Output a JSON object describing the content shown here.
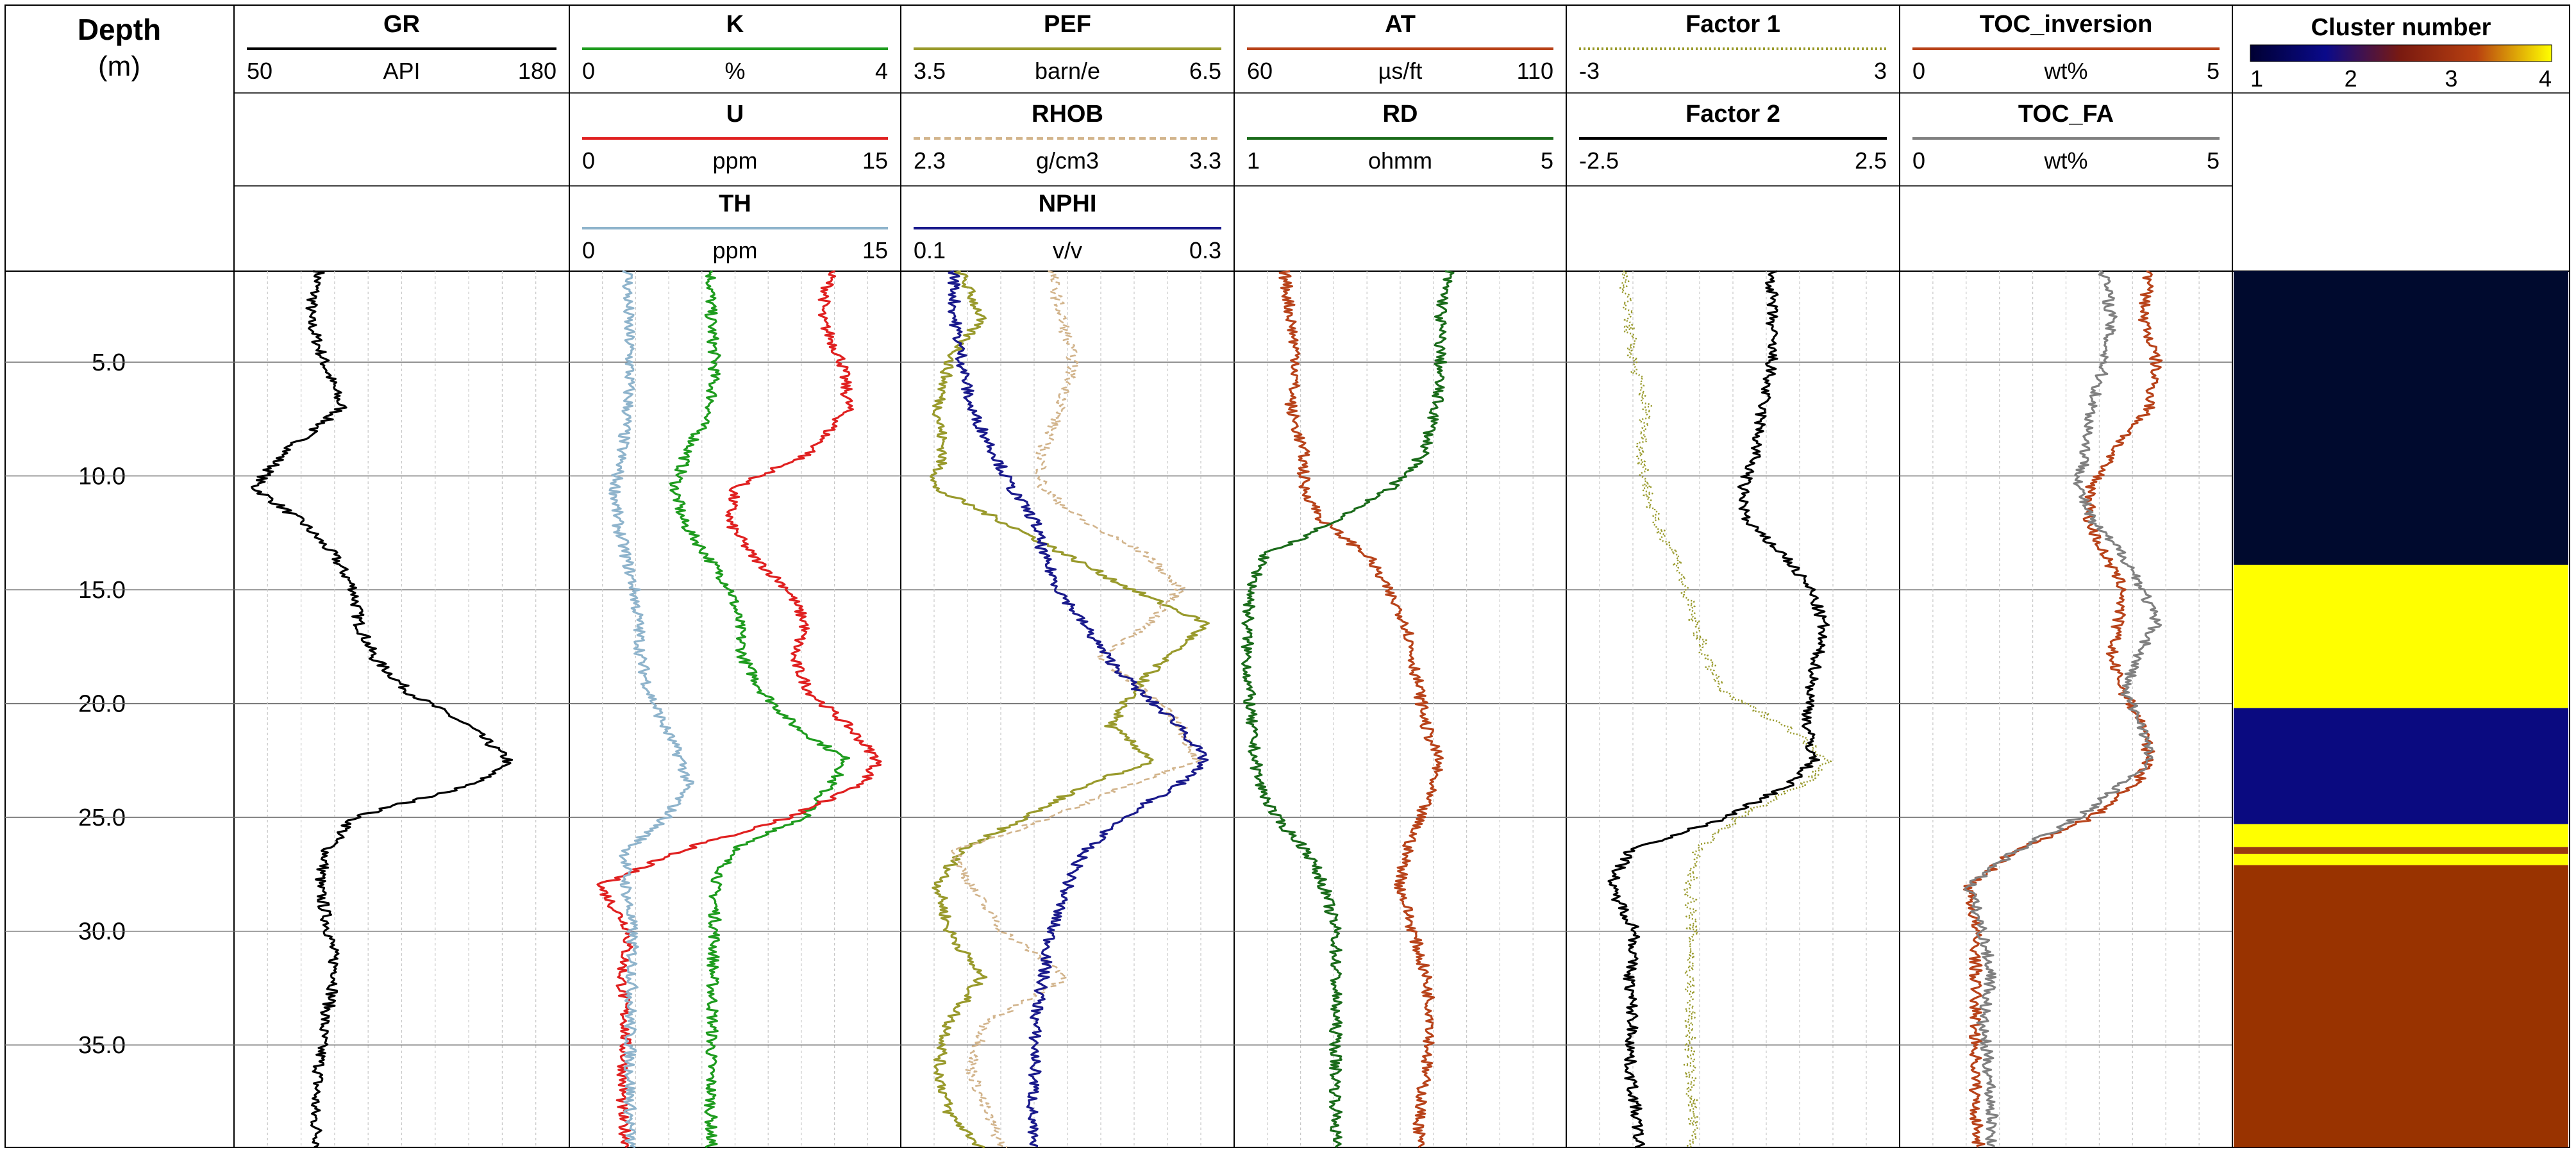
{
  "chart_data": {
    "type": "well-log",
    "depth_axis": {
      "title": "Depth",
      "unit": "(m)",
      "range": [
        1,
        39.5
      ],
      "ticks": [
        5.0,
        10.0,
        15.0,
        20.0,
        25.0,
        30.0,
        35.0
      ],
      "tick_labels": [
        "5.0",
        "10.0",
        "15.0",
        "20.0",
        "25.0",
        "30.0",
        "35.0"
      ],
      "grid": true
    },
    "tracks": [
      {
        "curves": [
          {
            "name": "GR",
            "unit": "API",
            "min": "50",
            "max": "180",
            "scale": [
              50,
              180
            ],
            "color": "#000000",
            "style": "solid",
            "depth": [
              1,
              3,
              5,
              7,
              9,
              10.5,
              12,
              13.5,
              15,
              16.5,
              18,
              19.5,
              21,
              22.5,
              23.5,
              25,
              26.5,
              28,
              30,
              32,
              34,
              36,
              38,
              39.5
            ],
            "values": [
              82,
              78,
              84,
              91,
              68,
              56,
              75,
              88,
              96,
              98,
              104,
              118,
              142,
              158,
              145,
              96,
              85,
              82,
              86,
              89,
              84,
              82,
              80,
              82
            ]
          }
        ]
      },
      {
        "curves": [
          {
            "name": "K",
            "unit": "%",
            "min": "0",
            "max": "4",
            "scale": [
              0,
              4
            ],
            "color": "#1e9c1e",
            "style": "solid",
            "depth": [
              1,
              3,
              5,
              7,
              9,
              10.5,
              12,
              13.5,
              15,
              16.5,
              18,
              19.5,
              21,
              22.5,
              23.5,
              25,
              26.5,
              28,
              30,
              32,
              34,
              36,
              38,
              39.5
            ],
            "values": [
              1.7,
              1.7,
              1.75,
              1.7,
              1.4,
              1.25,
              1.35,
              1.65,
              1.95,
              2.05,
              2.1,
              2.35,
              2.75,
              3.4,
              3.2,
              2.85,
              1.95,
              1.75,
              1.75,
              1.72,
              1.72,
              1.7,
              1.7,
              1.7
            ]
          },
          {
            "name": "U",
            "unit": "ppm",
            "min": "0",
            "max": "15",
            "scale": [
              0,
              15
            ],
            "color": "#e02020",
            "style": "solid",
            "depth": [
              1,
              3,
              5,
              7,
              9,
              10.5,
              12,
              13.5,
              15,
              16.5,
              18,
              19.5,
              21,
              22.5,
              23.5,
              25,
              26.5,
              28,
              30,
              32,
              34,
              36,
              38,
              39.5
            ],
            "values": [
              12,
              11.5,
              12.5,
              12.8,
              11,
              7.5,
              7.2,
              8.3,
              10,
              10.8,
              10.2,
              11,
              12.8,
              14.2,
              13.5,
              10,
              4.8,
              1.2,
              2.6,
              2.2,
              2.4,
              2.3,
              2.2,
              2.5
            ]
          },
          {
            "name": "TH",
            "unit": "ppm",
            "min": "0",
            "max": "15",
            "scale": [
              0,
              15
            ],
            "color": "#8fb4cc",
            "style": "solid",
            "depth": [
              1,
              3,
              5,
              7,
              9,
              10.5,
              12,
              13.5,
              15,
              16.5,
              18,
              19.5,
              21,
              22.5,
              23.5,
              25,
              26.5,
              28,
              30,
              32,
              34,
              36,
              38,
              39.5
            ],
            "values": [
              2.5,
              2.5,
              2.6,
              2.5,
              2.2,
              1.9,
              2,
              2.4,
              2.8,
              3,
              3.1,
              3.5,
              4.2,
              5,
              5.3,
              4.3,
              2.4,
              2.4,
              2.7,
              2.7,
              2.6,
              2.6,
              2.6,
              2.6
            ]
          }
        ]
      },
      {
        "curves": [
          {
            "name": "PEF",
            "unit": "barn/e",
            "min": "3.5",
            "max": "6.5",
            "scale": [
              3.5,
              6.5
            ],
            "color": "#999a2c",
            "style": "solid",
            "depth": [
              1,
              3,
              5,
              7,
              9,
              10.5,
              12,
              13.5,
              15,
              16.5,
              18,
              19.5,
              21,
              22.5,
              23.5,
              25,
              26.5,
              28,
              30,
              32,
              34,
              36,
              38,
              39.5
            ],
            "values": [
              4.0,
              4.2,
              3.9,
              3.8,
              3.85,
              3.75,
              4.4,
              5.0,
              5.6,
              6.3,
              5.9,
              5.6,
              5.4,
              5.8,
              5.2,
              4.6,
              4.0,
              3.8,
              3.9,
              4.2,
              3.9,
              3.8,
              3.9,
              4.2
            ]
          },
          {
            "name": "RHOB",
            "unit": "g/cm3",
            "min": "2.3",
            "max": "3.3",
            "scale": [
              2.3,
              3.3
            ],
            "color": "#d2b48c",
            "style": "dashed",
            "depth": [
              1,
              3,
              5,
              7,
              9,
              10.5,
              12,
              13.5,
              15,
              16.5,
              18,
              19.5,
              21,
              22.5,
              23.5,
              25,
              26.5,
              28,
              30,
              32,
              34,
              36,
              38,
              39.5
            ],
            "values": [
              2.75,
              2.78,
              2.82,
              2.78,
              2.72,
              2.72,
              2.85,
              3.05,
              3.15,
              3.05,
              2.9,
              3.05,
              3.15,
              3.2,
              3.0,
              2.75,
              2.45,
              2.5,
              2.6,
              2.8,
              2.55,
              2.5,
              2.55,
              2.6
            ]
          },
          {
            "name": "NPHI",
            "unit": "v/v",
            "min": "0.1",
            "max": "0.3",
            "scale": [
              0.1,
              0.3
            ],
            "color": "#1a1a8c",
            "style": "solid",
            "depth": [
              1,
              3,
              5,
              7,
              9,
              10.5,
              12,
              13.5,
              15,
              16.5,
              18,
              19.5,
              21,
              22.5,
              23.5,
              25,
              26.5,
              28,
              30,
              32,
              34,
              36,
              38,
              39.5
            ],
            "values": [
              0.13,
              0.13,
              0.135,
              0.14,
              0.155,
              0.165,
              0.18,
              0.185,
              0.195,
              0.21,
              0.225,
              0.245,
              0.27,
              0.285,
              0.27,
              0.235,
              0.21,
              0.2,
              0.19,
              0.185,
              0.18,
              0.18,
              0.178,
              0.178
            ]
          }
        ]
      },
      {
        "curves": [
          {
            "name": "AT",
            "unit": "µs/ft",
            "min": "60",
            "max": "110",
            "scale": [
              60,
              110
            ],
            "color": "#b8431a",
            "style": "solid",
            "depth": [
              1,
              3,
              5,
              7,
              9,
              10.5,
              12,
              13.5,
              15,
              16.5,
              18,
              19.5,
              21,
              22.5,
              23.5,
              25,
              26.5,
              28,
              30,
              32,
              34,
              36,
              38,
              39.5
            ],
            "values": [
              67,
              68,
              69,
              68,
              70,
              70,
              73,
              80,
              83,
              86,
              87,
              88,
              89,
              91,
              90,
              88,
              86,
              85,
              87,
              89,
              90,
              89,
              88,
              88
            ]
          },
          {
            "name": "RD",
            "unit": "ohmm",
            "min": "1",
            "max": "5",
            "scale": [
              1,
              5
            ],
            "color": "#1a6b1a",
            "style": "solid",
            "depth": [
              1,
              3,
              5,
              7,
              9,
              10.5,
              12,
              13.5,
              15,
              16.5,
              18,
              19.5,
              21,
              22.5,
              23.5,
              25,
              26.5,
              28,
              30,
              32,
              34,
              36,
              38,
              39.5
            ],
            "values": [
              3.6,
              3.5,
              3.5,
              3.45,
              3.3,
              2.9,
              2.2,
              1.3,
              1.15,
              1.1,
              1.1,
              1.12,
              1.15,
              1.2,
              1.25,
              1.45,
              1.85,
              2.05,
              2.2,
              2.2,
              2.2,
              2.2,
              2.2,
              2.2
            ]
          }
        ]
      },
      {
        "curves": [
          {
            "name": "Factor 1",
            "min": "-3",
            "max": "3",
            "scale": [
              -3,
              3
            ],
            "color": "#999a2c",
            "style": "dotted",
            "depth": [
              1,
              3,
              5,
              7,
              9,
              10.5,
              12,
              13.5,
              15,
              16.5,
              18,
              19.5,
              21,
              22.5,
              23.5,
              25,
              26.5,
              28,
              30,
              32,
              34,
              36,
              38,
              39.5
            ],
            "values": [
              -2.0,
              -1.95,
              -1.85,
              -1.6,
              -1.7,
              -1.6,
              -1.45,
              -1.05,
              -0.9,
              -0.7,
              -0.5,
              -0.2,
              1.0,
              1.8,
              1.35,
              0.1,
              -0.7,
              -0.8,
              -0.75,
              -0.8,
              -0.8,
              -0.8,
              -0.75,
              -0.75
            ]
          },
          {
            "name": "Factor 2",
            "min": "-2.5",
            "max": "2.5",
            "scale": [
              -2.5,
              2.5
            ],
            "color": "#000000",
            "style": "solid",
            "depth": [
              1,
              3,
              5,
              7,
              9,
              10.5,
              12,
              13.5,
              15,
              16.5,
              18,
              19.5,
              21,
              22.5,
              23.5,
              25,
              26.5,
              28,
              30,
              32,
              34,
              36,
              38,
              39.5
            ],
            "values": [
              0.6,
              0.6,
              0.6,
              0.45,
              0.35,
              0.15,
              0.2,
              0.8,
              1.2,
              1.4,
              1.3,
              1.2,
              1.15,
              1.25,
              0.9,
              -0.1,
              -1.6,
              -1.9,
              -1.5,
              -1.6,
              -1.55,
              -1.6,
              -1.5,
              -1.45
            ]
          }
        ]
      },
      {
        "curves": [
          {
            "name": "TOC_inversion",
            "unit": "wt%",
            "min": "0",
            "max": "5",
            "scale": [
              0,
              5
            ],
            "color": "#b8431a",
            "style": "solid",
            "depth": [
              1,
              3,
              5,
              7,
              9,
              10.5,
              12,
              13.5,
              15,
              16.5,
              18,
              19.5,
              21,
              22.5,
              23.5,
              25,
              26.5,
              28,
              30,
              32,
              34,
              36,
              38,
              39.5
            ],
            "values": [
              3.8,
              3.7,
              3.9,
              3.8,
              3.2,
              2.9,
              2.85,
              3.1,
              3.4,
              3.3,
              3.2,
              3.4,
              3.7,
              3.8,
              3.6,
              2.9,
              1.7,
              1.0,
              1.1,
              1.1,
              1.1,
              1.1,
              1.1,
              1.15
            ]
          },
          {
            "name": "TOC_FA",
            "unit": "wt%",
            "min": "0",
            "max": "5",
            "scale": [
              0,
              5
            ],
            "color": "#808080",
            "style": "solid",
            "depth": [
              1,
              3,
              5,
              7,
              9,
              10.5,
              12,
              13.5,
              15,
              16.5,
              18,
              19.5,
              21,
              22.5,
              23.5,
              25,
              26.5,
              28,
              30,
              32,
              34,
              36,
              38,
              39.5
            ],
            "values": [
              3.1,
              3.2,
              3.1,
              2.9,
              2.8,
              2.7,
              2.9,
              3.4,
              3.7,
              3.9,
              3.6,
              3.4,
              3.7,
              3.8,
              3.4,
              2.7,
              1.7,
              1.0,
              1.2,
              1.35,
              1.2,
              1.3,
              1.35,
              1.35
            ]
          }
        ]
      }
    ],
    "cluster_track": {
      "title": "Cluster number",
      "colorbar_ticks": [
        "1",
        "2",
        "3",
        "4"
      ],
      "colorbar_colors": [
        "#000033",
        "#0a0a8a",
        "#7a1a10",
        "#b84010",
        "#ffff00"
      ],
      "intervals": [
        {
          "top": 1.0,
          "bottom": 13.9,
          "cluster": 1,
          "color": "#000a2e"
        },
        {
          "top": 13.9,
          "bottom": 20.2,
          "cluster": 4,
          "color": "#ffff00"
        },
        {
          "top": 20.2,
          "bottom": 25.3,
          "cluster": 2,
          "color": "#0a0a80"
        },
        {
          "top": 25.3,
          "bottom": 26.3,
          "cluster": 4,
          "color": "#ffff00"
        },
        {
          "top": 26.3,
          "bottom": 26.6,
          "cluster": 3,
          "color": "#9a3a10"
        },
        {
          "top": 26.6,
          "bottom": 27.1,
          "cluster": 4,
          "color": "#ffff00"
        },
        {
          "top": 27.1,
          "bottom": 39.5,
          "cluster": 3,
          "color": "#993300"
        }
      ]
    }
  }
}
